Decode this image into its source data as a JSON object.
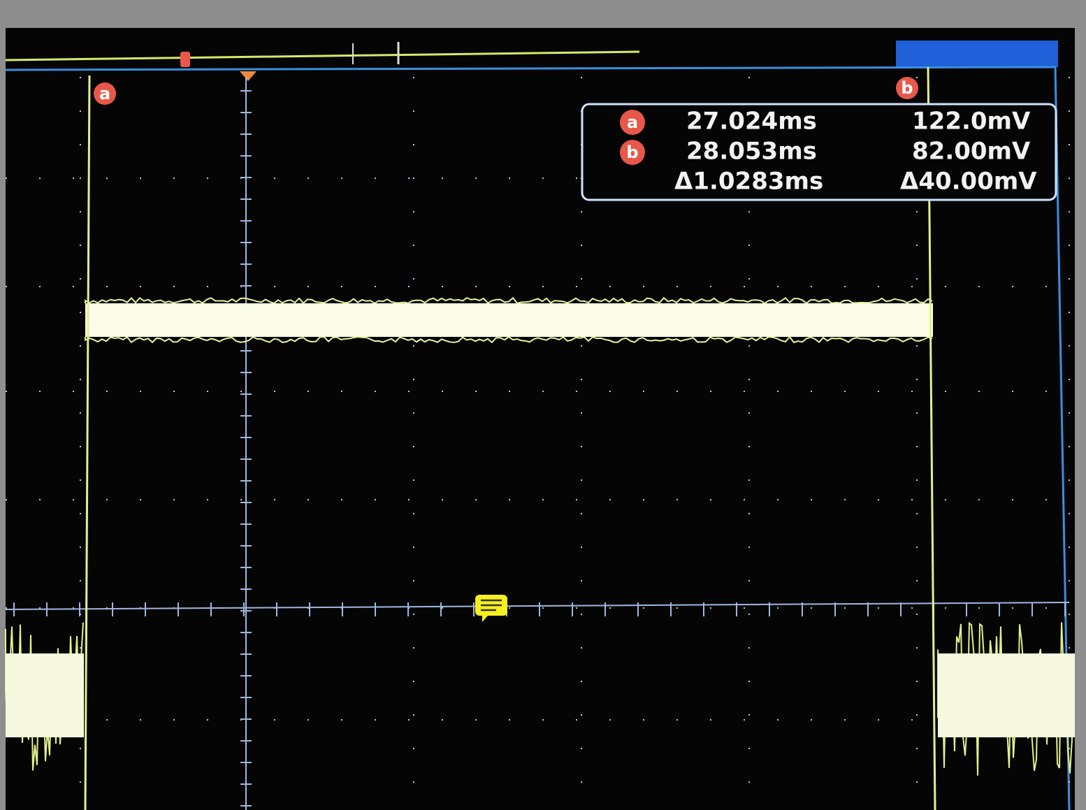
{
  "cursors": {
    "a": "a",
    "b": "b"
  },
  "readout": {
    "rows": [
      {
        "cursor": "a",
        "time": "27.024ms",
        "voltage": "122.0mV"
      },
      {
        "cursor": "b",
        "time": "28.053ms",
        "voltage": "82.00mV"
      },
      {
        "time": "Δ1.0283ms",
        "voltage": "Δ40.00mV"
      }
    ]
  }
}
